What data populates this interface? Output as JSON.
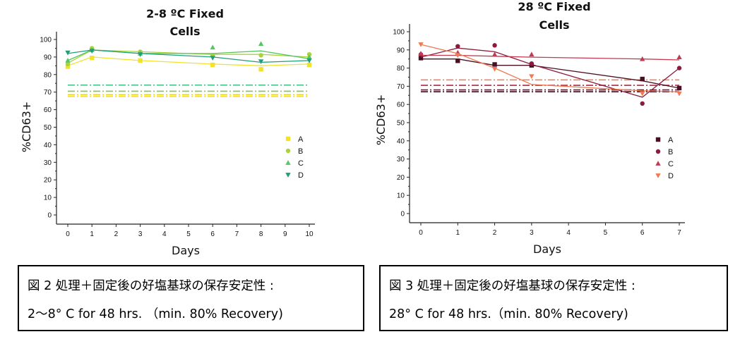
{
  "chart_data": [
    {
      "type": "line",
      "title": [
        "2-8 ºC Fixed",
        "Cells"
      ],
      "xlabel": "Days",
      "ylabel": "%CD63+",
      "xlim": [
        0,
        10
      ],
      "ylim": [
        0,
        100
      ],
      "xticks": [
        0,
        1,
        2,
        3,
        4,
        5,
        6,
        7,
        8,
        9,
        10
      ],
      "yticks": [
        0,
        10,
        20,
        30,
        40,
        50,
        60,
        70,
        80,
        90,
        100
      ],
      "legend_position": "bottom-right",
      "series": [
        {
          "name": "A",
          "marker": "square",
          "color": "#f2e22a",
          "x": [
            0,
            1,
            3,
            6,
            8,
            10
          ],
          "points": [
            84.5,
            89.5,
            88,
            85.5,
            83,
            85.5
          ],
          "line": [
            85,
            90,
            88,
            86,
            85,
            86
          ]
        },
        {
          "name": "B",
          "marker": "circle",
          "color": "#a9d33a",
          "x": [
            0,
            1,
            3,
            6,
            8,
            10
          ],
          "points": [
            86,
            95,
            93,
            91,
            91,
            91.5
          ],
          "line": [
            86.5,
            94,
            93,
            91.5,
            91.5,
            90
          ]
        },
        {
          "name": "C",
          "marker": "triangle-up",
          "color": "#58c468",
          "x": [
            0,
            1,
            3,
            6,
            8,
            10
          ],
          "points": [
            88,
            94,
            92,
            95.5,
            97.5,
            90
          ],
          "line": [
            88,
            94,
            92,
            92,
            93.5,
            89
          ]
        },
        {
          "name": "D",
          "marker": "triangle-down",
          "color": "#1f9e78",
          "x": [
            0,
            1,
            3,
            6,
            8,
            10
          ],
          "points": [
            92.5,
            93.5,
            91.5,
            89.5,
            87.5,
            88
          ],
          "line": [
            92,
            94,
            92,
            90,
            87,
            88
          ]
        }
      ],
      "reference_lines": [
        {
          "y": 74,
          "color": "#3dc07a",
          "dash": "10 3 2 3"
        },
        {
          "y": 70.5,
          "color": "#7cc850",
          "dash": "10 3 2 3"
        },
        {
          "y": 68.5,
          "color": "#e8d22a",
          "dash": "10 3 2 3"
        },
        {
          "y": 67.5,
          "color": "#f2de3a",
          "dash": "10 3 2 3"
        }
      ]
    },
    {
      "type": "line",
      "title": [
        "28 ºC Fixed",
        "Cells"
      ],
      "xlabel": "Days",
      "ylabel": "%CD63+",
      "xlim": [
        0,
        7
      ],
      "ylim": [
        0,
        100
      ],
      "xticks": [
        0,
        1,
        2,
        3,
        4,
        5,
        6,
        7
      ],
      "yticks": [
        0,
        10,
        20,
        30,
        40,
        50,
        60,
        70,
        80,
        90,
        100
      ],
      "legend_position": "bottom-right",
      "series": [
        {
          "name": "A",
          "marker": "square",
          "color": "#4a0f24",
          "x": [
            0,
            1,
            2,
            3,
            6,
            7
          ],
          "points": [
            85.5,
            84,
            82,
            81.5,
            74,
            69
          ],
          "line": [
            85,
            85,
            81.5,
            81.5,
            73,
            69
          ]
        },
        {
          "name": "B",
          "marker": "circle",
          "color": "#8a1a3e",
          "x": [
            0,
            1,
            2,
            3,
            6,
            7
          ],
          "points": [
            87.5,
            92,
            92.5,
            82.5,
            60.5,
            80
          ],
          "line": [
            86,
            91,
            89,
            82,
            64,
            80
          ]
        },
        {
          "name": "C",
          "marker": "triangle-up",
          "color": "#c23a52",
          "x": [
            0,
            1,
            2,
            3,
            6,
            7
          ],
          "points": [
            88,
            88.5,
            87.5,
            87.5,
            85,
            86
          ],
          "line": [
            87,
            87,
            86.5,
            86,
            85,
            84.5
          ]
        },
        {
          "name": "D",
          "marker": "triangle-down",
          "color": "#f07a52",
          "x": [
            0,
            1,
            2,
            3,
            6,
            7
          ],
          "points": [
            93,
            87,
            79.5,
            75.5,
            66,
            66
          ],
          "line": [
            93,
            88,
            80,
            71,
            67.5,
            67
          ]
        }
      ],
      "reference_lines": [
        {
          "y": 73.5,
          "color": "#f07a52",
          "dash": "10 3 2 3"
        },
        {
          "y": 70.5,
          "color": "#b2283f",
          "dash": "10 3 2 3"
        },
        {
          "y": 68,
          "color": "#7a1533",
          "dash": "10 3 2 3"
        },
        {
          "y": 67,
          "color": "#3e0a1e",
          "dash": "10 3 2 3"
        }
      ]
    }
  ],
  "captions": {
    "left": {
      "line1": "図 2  処理＋固定後の好塩基球の保存安定性 :",
      "line2": "2～8°  C for 48 hrs.   （min. 80% Recovery)"
    },
    "right": {
      "line1": "図 3  処理＋固定後の好塩基球の保存安定性 :",
      "line2": "28°  C for 48 hrs.（min. 80% Recovery)"
    }
  }
}
